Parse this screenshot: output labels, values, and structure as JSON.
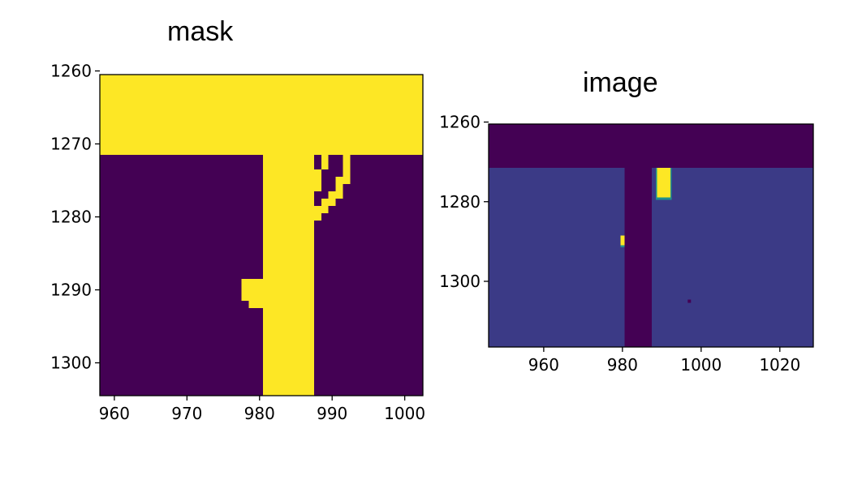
{
  "chart_data": [
    {
      "type": "heatmap",
      "title": "mask",
      "xlabel": "",
      "ylabel": "",
      "colormap": "viridis",
      "x_range": [
        958,
        1002.5
      ],
      "y_range": [
        1260.5,
        1304.5
      ],
      "y_inverted": true,
      "xticks": [
        960,
        970,
        980,
        990,
        1000
      ],
      "yticks": [
        1260,
        1270,
        1280,
        1290,
        1300
      ],
      "colors": {
        "high": "#fde725",
        "low": "#440154"
      },
      "regions_value_1": [
        {
          "x": [
            958,
            1002.5
          ],
          "y": [
            1260.5,
            1271.5
          ]
        },
        {
          "x": [
            980.5,
            987.5
          ],
          "y": [
            1271.5,
            1304.5
          ]
        },
        {
          "x": [
            977.5,
            980.5
          ],
          "y": [
            1288.5,
            1291.5
          ]
        },
        {
          "x": [
            978.5,
            980.5
          ],
          "y": [
            1291.5,
            1292.5
          ]
        }
      ],
      "crescent_value_1": [
        [
          1271.5,
          988.5,
          989.5
        ],
        [
          1271.5,
          991.5,
          992.5
        ],
        [
          1272.5,
          988.5,
          989.5
        ],
        [
          1272.5,
          991.5,
          992.5
        ],
        [
          1273.5,
          987.5,
          988.5
        ],
        [
          1273.5,
          991.5,
          992.5
        ],
        [
          1274.5,
          987.5,
          988.5
        ],
        [
          1274.5,
          990.5,
          992.5
        ],
        [
          1275.5,
          987.5,
          988.5
        ],
        [
          1275.5,
          990.5,
          991.5
        ],
        [
          1276.5,
          986.5,
          987.5
        ],
        [
          1276.5,
          989.5,
          991.5
        ],
        [
          1277.5,
          986.5,
          987.5
        ],
        [
          1277.5,
          988.5,
          990.5
        ],
        [
          1278.5,
          986.5,
          989.5
        ],
        [
          1279.5,
          987.5,
          988.5
        ]
      ]
    },
    {
      "type": "heatmap",
      "title": "image",
      "xlabel": "",
      "ylabel": "",
      "colormap": "viridis",
      "x_range": [
        946,
        1028.5
      ],
      "y_range": [
        1260.5,
        1316.5
      ],
      "y_inverted": true,
      "xticks": [
        960,
        980,
        1000,
        1020
      ],
      "yticks": [
        1260,
        1280,
        1300
      ],
      "colors": {
        "background": "#3b3a86",
        "masked": "#440154",
        "high": "#fde725",
        "mid": "#21908d"
      },
      "masked_regions": [
        {
          "x": [
            946,
            1028.5
          ],
          "y": [
            1260.5,
            1271.5
          ]
        },
        {
          "x": [
            980.5,
            987.5
          ],
          "y": [
            1271.5,
            1316.5
          ]
        }
      ],
      "bright_patches": [
        {
          "x": [
            988.5,
            992.5
          ],
          "y": [
            1271.5,
            1279.5
          ]
        },
        {
          "x": [
            979.5,
            980.5
          ],
          "y": [
            1288.5,
            1291.5
          ]
        }
      ],
      "dot": {
        "x": 997,
        "y": 1305
      }
    }
  ]
}
